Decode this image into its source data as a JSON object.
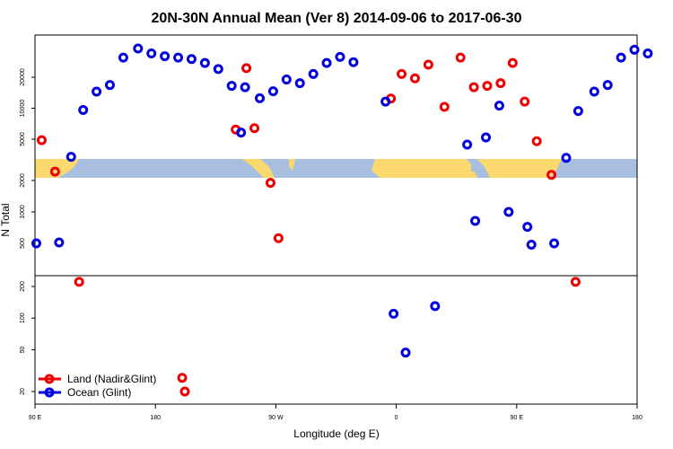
{
  "chart_data": {
    "type": "scatter",
    "title": "20N-30N Annual Mean (Ver 8)   2014-09-06 to 2017-06-30",
    "xlabel": "Longitude (deg E)",
    "ylabel": "N Total",
    "xlim": [
      90,
      540
    ],
    "y_scale": "log (piecewise, three stacked bands)",
    "x_ticks": [
      {
        "value": 90,
        "label": "90 E"
      },
      {
        "value": 180,
        "label": "180"
      },
      {
        "value": 270,
        "label": "90 W"
      },
      {
        "value": 360,
        "label": "0"
      },
      {
        "value": 450,
        "label": "90 E"
      },
      {
        "value": 540,
        "label": "180"
      }
    ],
    "y_ticks": [
      {
        "value": 20,
        "label": "20"
      },
      {
        "value": 50,
        "label": "50"
      },
      {
        "value": 100,
        "label": "100"
      },
      {
        "value": 200,
        "label": "200"
      },
      {
        "value": 500,
        "label": "500"
      },
      {
        "value": 1000,
        "label": "1000"
      },
      {
        "value": 2000,
        "label": "2000"
      },
      {
        "value": 5000,
        "label": "5000"
      },
      {
        "value": 10000,
        "label": "10000"
      },
      {
        "value": 20000,
        "label": "20000"
      }
    ],
    "map_strip": "world map strip (land yellow, ocean blue) at 20N-30N",
    "legend": {
      "position": "bottom-left"
    },
    "colors": {
      "land": "#ee0000",
      "ocean": "#0000dd",
      "map_land": "#fbd96f",
      "map_ocean": "#a9bfe0"
    },
    "series": [
      {
        "name": "Land (Nadir&Glint)",
        "points": [
          {
            "x": 95,
            "y": 4800
          },
          {
            "x": 105,
            "y": 2080
          },
          {
            "x": 123,
            "y": 240
          },
          {
            "x": 240,
            "y": 6200
          },
          {
            "x": 248,
            "y": 24500
          },
          {
            "x": 254,
            "y": 6400
          },
          {
            "x": 266,
            "y": 1900
          },
          {
            "x": 272,
            "y": 560
          },
          {
            "x": 356,
            "y": 12400
          },
          {
            "x": 364,
            "y": 21500
          },
          {
            "x": 374,
            "y": 19500
          },
          {
            "x": 384,
            "y": 26500
          },
          {
            "x": 396,
            "y": 10300
          },
          {
            "x": 408,
            "y": 31000
          },
          {
            "x": 418,
            "y": 16000
          },
          {
            "x": 428,
            "y": 16500
          },
          {
            "x": 438,
            "y": 17500
          },
          {
            "x": 447,
            "y": 27500
          },
          {
            "x": 456,
            "y": 11600
          },
          {
            "x": 465,
            "y": 4600
          },
          {
            "x": 476,
            "y": 2050
          },
          {
            "x": 494,
            "y": 240
          },
          {
            "x": 200,
            "y": 27
          },
          {
            "x": 202,
            "y": 20
          }
        ]
      },
      {
        "name": "Ocean (Glint)",
        "points": [
          {
            "x": 91,
            "y": 500
          },
          {
            "x": 108,
            "y": 510
          },
          {
            "x": 117,
            "y": 2400
          },
          {
            "x": 126,
            "y": 9600
          },
          {
            "x": 136,
            "y": 14500
          },
          {
            "x": 146,
            "y": 16800
          },
          {
            "x": 156,
            "y": 31000
          },
          {
            "x": 167,
            "y": 38000
          },
          {
            "x": 177,
            "y": 34000
          },
          {
            "x": 187,
            "y": 32000
          },
          {
            "x": 197,
            "y": 31000
          },
          {
            "x": 207,
            "y": 30000
          },
          {
            "x": 217,
            "y": 27500
          },
          {
            "x": 227,
            "y": 24000
          },
          {
            "x": 237,
            "y": 16500
          },
          {
            "x": 247,
            "y": 16000
          },
          {
            "x": 244,
            "y": 5800
          },
          {
            "x": 258,
            "y": 12500
          },
          {
            "x": 268,
            "y": 14600
          },
          {
            "x": 278,
            "y": 19000
          },
          {
            "x": 288,
            "y": 17500
          },
          {
            "x": 298,
            "y": 21500
          },
          {
            "x": 308,
            "y": 27500
          },
          {
            "x": 318,
            "y": 31500
          },
          {
            "x": 328,
            "y": 28000
          },
          {
            "x": 352,
            "y": 11600
          },
          {
            "x": 358,
            "y": 110
          },
          {
            "x": 367,
            "y": 47
          },
          {
            "x": 389,
            "y": 130
          },
          {
            "x": 413,
            "y": 4000
          },
          {
            "x": 419,
            "y": 820
          },
          {
            "x": 427,
            "y": 5200
          },
          {
            "x": 437,
            "y": 10600
          },
          {
            "x": 444,
            "y": 1000
          },
          {
            "x": 458,
            "y": 720
          },
          {
            "x": 461,
            "y": 490
          },
          {
            "x": 478,
            "y": 500
          },
          {
            "x": 487,
            "y": 2300
          },
          {
            "x": 496,
            "y": 9400
          },
          {
            "x": 508,
            "y": 14500
          },
          {
            "x": 518,
            "y": 16800
          },
          {
            "x": 528,
            "y": 31000
          },
          {
            "x": 538,
            "y": 37000
          },
          {
            "x": 548,
            "y": 34000
          }
        ]
      }
    ]
  }
}
